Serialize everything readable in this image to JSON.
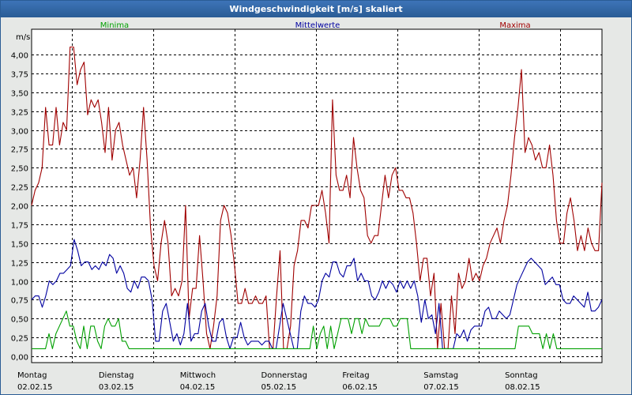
{
  "window": {
    "title": "Windgeschwindigkeit [m/s] skaliert"
  },
  "chart_data": {
    "type": "line",
    "title": "Windgeschwindigkeit [m/s] skaliert",
    "ylabel": "m/s",
    "ylim": [
      0,
      4.25
    ],
    "yticks": [
      "4,00",
      "3,75",
      "3,50",
      "3,25",
      "3,00",
      "2,75",
      "2,50",
      "2,25",
      "2,00",
      "1,75",
      "1,50",
      "1,25",
      "1,00",
      "0,75",
      "0,50",
      "0,25",
      "0,00"
    ],
    "ytick_values": [
      4.0,
      3.75,
      3.5,
      3.25,
      3.0,
      2.75,
      2.5,
      2.25,
      2.0,
      1.75,
      1.5,
      1.25,
      1.0,
      0.75,
      0.5,
      0.25,
      0.0
    ],
    "xlim": [
      0,
      7.02
    ],
    "xticks": [
      {
        "day": "Montag",
        "date": "02.02.15",
        "x": 0
      },
      {
        "day": "Dienstag",
        "date": "03.02.15",
        "x": 1
      },
      {
        "day": "Mittwoch",
        "date": "04.02.15",
        "x": 2
      },
      {
        "day": "Donnerstag",
        "date": "05.02.15",
        "x": 3
      },
      {
        "day": "Freitag",
        "date": "06.02.15",
        "x": 4
      },
      {
        "day": "Samstag",
        "date": "07.02.15",
        "x": 5
      },
      {
        "day": "Sonntag",
        "date": "08.02.15",
        "x": 6
      }
    ],
    "grid": true,
    "legend": "top",
    "series": [
      {
        "name": "Maxima",
        "color": "#a00000",
        "values": [
          2.0,
          2.2,
          2.3,
          2.5,
          3.3,
          2.8,
          2.8,
          3.3,
          2.8,
          3.1,
          3.0,
          4.1,
          4.1,
          3.6,
          3.8,
          3.9,
          3.2,
          3.4,
          3.3,
          3.4,
          3.1,
          2.7,
          3.3,
          2.6,
          3.0,
          3.1,
          2.8,
          2.6,
          2.4,
          2.5,
          2.1,
          2.6,
          3.3,
          2.6,
          1.7,
          1.2,
          1.0,
          1.5,
          1.8,
          1.5,
          0.8,
          0.9,
          0.8,
          1.0,
          2.0,
          0.5,
          0.9,
          0.9,
          1.6,
          1.0,
          0.3,
          0.1,
          0.4,
          0.8,
          1.8,
          2.0,
          1.9,
          1.6,
          1.2,
          0.7,
          0.7,
          0.9,
          0.7,
          0.7,
          0.8,
          0.7,
          0.7,
          0.8,
          0.1,
          0.1,
          0.8,
          1.4,
          0.1,
          0.1,
          0.4,
          1.2,
          1.4,
          1.8,
          1.8,
          1.7,
          2.0,
          2.0,
          2.0,
          2.2,
          1.9,
          1.5,
          3.4,
          2.4,
          2.2,
          2.2,
          2.4,
          2.1,
          2.9,
          2.5,
          2.2,
          2.1,
          1.6,
          1.5,
          1.6,
          1.6,
          2.0,
          2.4,
          2.1,
          2.4,
          2.5,
          2.2,
          2.2,
          2.1,
          2.1,
          1.9,
          1.5,
          1.0,
          1.3,
          1.3,
          0.8,
          1.1,
          0.1,
          0.7,
          0.1,
          0.1,
          0.8,
          0.3,
          1.1,
          0.9,
          1.0,
          1.3,
          1.0,
          1.1,
          1.0,
          1.2,
          1.3,
          1.5,
          1.6,
          1.7,
          1.5,
          1.8,
          2.0,
          2.4,
          2.9,
          3.3,
          3.8,
          2.7,
          2.9,
          2.8,
          2.6,
          2.7,
          2.5,
          2.5,
          2.8,
          2.4,
          1.8,
          1.5,
          1.5,
          1.9,
          2.1,
          1.8,
          1.4,
          1.6,
          1.4,
          1.7,
          1.5,
          1.4,
          1.4,
          2.3
        ]
      },
      {
        "name": "Mittelwerte",
        "color": "#0000a0",
        "values": [
          0.75,
          0.8,
          0.8,
          0.65,
          0.8,
          1.0,
          0.95,
          1.0,
          1.1,
          1.1,
          1.15,
          1.2,
          1.55,
          1.4,
          1.2,
          1.25,
          1.25,
          1.15,
          1.2,
          1.15,
          1.25,
          1.2,
          1.35,
          1.3,
          1.1,
          1.2,
          1.1,
          0.9,
          0.85,
          1.0,
          0.9,
          1.05,
          1.05,
          1.0,
          0.75,
          0.2,
          0.2,
          0.6,
          0.7,
          0.45,
          0.2,
          0.3,
          0.15,
          0.3,
          0.7,
          0.2,
          0.3,
          0.3,
          0.6,
          0.7,
          0.4,
          0.2,
          0.2,
          0.45,
          0.5,
          0.25,
          0.1,
          0.25,
          0.25,
          0.45,
          0.25,
          0.15,
          0.2,
          0.2,
          0.2,
          0.15,
          0.2,
          0.2,
          0.1,
          0.1,
          0.4,
          0.7,
          0.5,
          0.3,
          0.1,
          0.1,
          0.6,
          0.8,
          0.7,
          0.7,
          0.65,
          0.75,
          1.0,
          1.1,
          1.05,
          1.25,
          1.25,
          1.1,
          1.05,
          1.2,
          1.2,
          1.3,
          1.0,
          1.1,
          1.0,
          1.0,
          0.8,
          0.75,
          0.85,
          1.0,
          0.9,
          1.0,
          0.95,
          0.85,
          1.0,
          0.9,
          1.0,
          0.9,
          1.0,
          0.8,
          0.45,
          0.75,
          0.5,
          0.55,
          0.3,
          0.7,
          0.1,
          0.1,
          0.1,
          0.1,
          0.3,
          0.25,
          0.35,
          0.2,
          0.35,
          0.4,
          0.4,
          0.4,
          0.6,
          0.65,
          0.5,
          0.5,
          0.6,
          0.55,
          0.5,
          0.55,
          0.75,
          0.95,
          1.05,
          1.15,
          1.25,
          1.3,
          1.25,
          1.2,
          1.15,
          0.95,
          1.0,
          1.05,
          0.95,
          0.95,
          0.75,
          0.7,
          0.7,
          0.8,
          0.75,
          0.7,
          0.65,
          0.85,
          0.6,
          0.6,
          0.65,
          0.75
        ]
      },
      {
        "name": "Minima",
        "color": "#00a000",
        "values": [
          0.1,
          0.1,
          0.1,
          0.1,
          0.1,
          0.3,
          0.1,
          0.3,
          0.4,
          0.5,
          0.6,
          0.4,
          0.4,
          0.2,
          0.1,
          0.4,
          0.1,
          0.4,
          0.4,
          0.2,
          0.1,
          0.4,
          0.5,
          0.4,
          0.4,
          0.5,
          0.2,
          0.2,
          0.1,
          0.1,
          0.1,
          0.1,
          0.1,
          0.1,
          0.1,
          0.1,
          0.1,
          0.1,
          0.1,
          0.1,
          0.1,
          0.1,
          0.1,
          0.1,
          0.1,
          0.1,
          0.1,
          0.1,
          0.1,
          0.1,
          0.1,
          0.1,
          0.1,
          0.1,
          0.1,
          0.1,
          0.1,
          0.1,
          0.1,
          0.1,
          0.1,
          0.1,
          0.1,
          0.1,
          0.1,
          0.1,
          0.1,
          0.1,
          0.1,
          0.1,
          0.1,
          0.1,
          0.1,
          0.1,
          0.1,
          0.1,
          0.1,
          0.1,
          0.1,
          0.1,
          0.1,
          0.4,
          0.1,
          0.3,
          0.4,
          0.1,
          0.4,
          0.1,
          0.3,
          0.5,
          0.5,
          0.5,
          0.3,
          0.5,
          0.5,
          0.3,
          0.5,
          0.4,
          0.4,
          0.4,
          0.4,
          0.5,
          0.5,
          0.5,
          0.4,
          0.4,
          0.5,
          0.5,
          0.5,
          0.1,
          0.1,
          0.1,
          0.1,
          0.1,
          0.1,
          0.1,
          0.1,
          0.1,
          0.1,
          0.1,
          0.1,
          0.1,
          0.1,
          0.1,
          0.1,
          0.1,
          0.1,
          0.1,
          0.1,
          0.1,
          0.1,
          0.1,
          0.1,
          0.1,
          0.1,
          0.1,
          0.1,
          0.1,
          0.1,
          0.1,
          0.4,
          0.4,
          0.4,
          0.4,
          0.3,
          0.3,
          0.3,
          0.1,
          0.3,
          0.1,
          0.3,
          0.1,
          0.1,
          0.1,
          0.1,
          0.1,
          0.1,
          0.1,
          0.1,
          0.1,
          0.1,
          0.1,
          0.1,
          0.1,
          0.1
        ]
      }
    ]
  }
}
